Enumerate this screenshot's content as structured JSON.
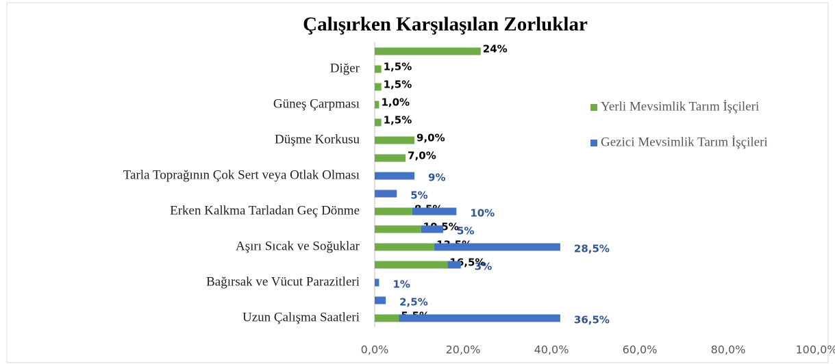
{
  "chart_data": {
    "type": "stacked_barh",
    "title": "Çalışırken Karşılaşılan Zorluklar",
    "categories": [
      null,
      "Diğer",
      null,
      "Güneş Çarpması",
      null,
      "Düşme Korkusu",
      null,
      "Tarla Toprağının Çok Sert veya Otlak Olması",
      null,
      "Erken Kalkma Tarladan Geç Dönme",
      null,
      "Aşırı Sıcak ve Soğuklar",
      null,
      "Bağırsak ve Vücut Parazitleri",
      null,
      "Uzun Çalışma Saatleri"
    ],
    "series": [
      {
        "name": "Yerli Mevsimlik Tarım İşçileri",
        "color": "#70ad47",
        "values": [
          24,
          1.5,
          1.5,
          1.0,
          1.5,
          9.0,
          7.0,
          null,
          null,
          8.5,
          10.5,
          13.5,
          16.5,
          null,
          null,
          5.5
        ],
        "value_labels": [
          "24%",
          "1,5%",
          "1,5%",
          "1,0%",
          "1,5%",
          "9,0%",
          "7,0%",
          null,
          null,
          "8,5%",
          "10,5%",
          "13,5%",
          "16,5%",
          null,
          null,
          "5,5%"
        ]
      },
      {
        "name": "Gezici Mevsimlik Tarım İşçileri",
        "color": "#4472c4",
        "values": [
          null,
          null,
          null,
          null,
          null,
          null,
          null,
          9,
          5,
          10,
          5,
          28.5,
          3,
          1,
          2.5,
          36.5
        ],
        "value_labels": [
          null,
          null,
          null,
          null,
          null,
          null,
          null,
          "9%",
          "5%",
          "10%",
          "5%",
          "28,5%",
          "3%",
          "1%",
          "2,5%",
          "36,5%"
        ]
      }
    ],
    "xlim": [
      0,
      100
    ],
    "xticks": [
      {
        "value": 0,
        "label": "0,0%"
      },
      {
        "value": 20,
        "label": "20,0%"
      },
      {
        "value": 40,
        "label": "40,0%"
      },
      {
        "value": 60,
        "label": "60,0%"
      },
      {
        "value": 80,
        "label": "80,0%"
      },
      {
        "value": 100,
        "label": "100,0%"
      }
    ],
    "legend": "right"
  }
}
